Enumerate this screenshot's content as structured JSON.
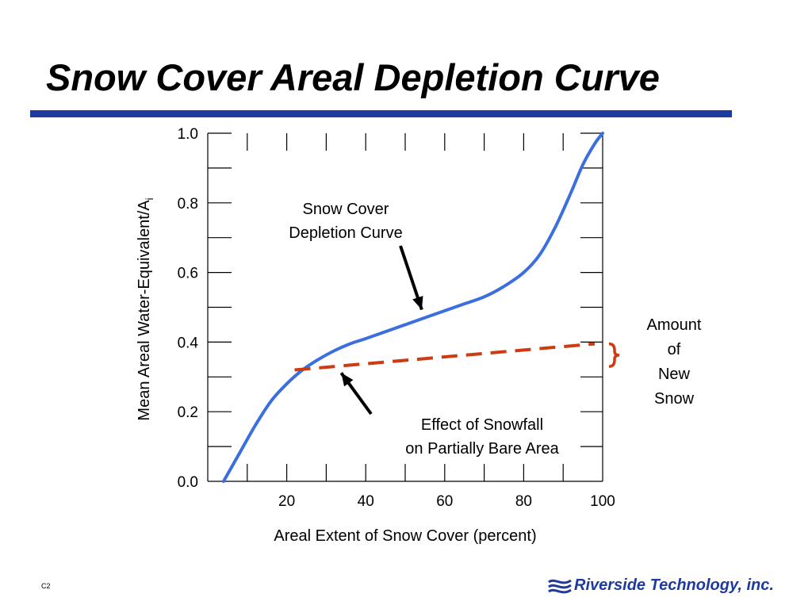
{
  "slide": {
    "title": "Snow Cover Areal Depletion Curve",
    "slide_code": "C2",
    "footer": {
      "logo_text": "Riverside Technology, inc."
    }
  },
  "colors": {
    "title_rule": "#1e3a9e",
    "curve": "#3b6fe0",
    "new_snow_line": "#cc3b12",
    "logo": "#1e3a9e"
  },
  "chart_data": {
    "type": "line",
    "xlabel": "Areal Extent of Snow Cover (percent)",
    "ylabel": "Mean Areal Water-Equivalent/A",
    "ylabel_subscript": "i",
    "xlim": [
      0,
      100
    ],
    "ylim": [
      0.0,
      1.0
    ],
    "x_ticks": [
      20,
      40,
      60,
      80,
      100
    ],
    "x_tick_labels": [
      "20",
      "40",
      "60",
      "80",
      "100"
    ],
    "y_ticks": [
      0.0,
      0.2,
      0.4,
      0.6,
      0.8,
      1.0
    ],
    "y_tick_labels": [
      "0.0",
      "0.2",
      "0.4",
      "0.6",
      "0.8",
      "1.0"
    ],
    "grid": false,
    "series": [
      {
        "name": "Snow Cover Depletion Curve",
        "style": "solid",
        "color": "#3b6fe0",
        "x": [
          4,
          8,
          12,
          16,
          20,
          24,
          28,
          32,
          36,
          40,
          45,
          50,
          55,
          60,
          65,
          70,
          75,
          80,
          84,
          88,
          92,
          95,
          98,
          100
        ],
        "y": [
          0.0,
          0.08,
          0.16,
          0.23,
          0.28,
          0.32,
          0.35,
          0.375,
          0.395,
          0.41,
          0.43,
          0.45,
          0.47,
          0.49,
          0.51,
          0.53,
          0.56,
          0.6,
          0.65,
          0.73,
          0.83,
          0.91,
          0.97,
          1.0
        ]
      },
      {
        "name": "Effect of Snowfall on Partially Bare Area",
        "style": "dashed",
        "color": "#cc3b12",
        "x": [
          22,
          98
        ],
        "y": [
          0.32,
          0.395
        ]
      }
    ],
    "annotations": [
      {
        "text_lines": [
          "Snow Cover",
          "Depletion Curve"
        ],
        "arrow_to": [
          55,
          0.5
        ]
      },
      {
        "text_lines": [
          "Effect of Snowfall",
          "on Partially Bare Area"
        ],
        "arrow_to": [
          34,
          0.3
        ]
      },
      {
        "text_lines": [
          "Amount",
          "of",
          "New",
          "Snow"
        ],
        "brace_range": [
          0.33,
          0.395
        ]
      }
    ]
  }
}
